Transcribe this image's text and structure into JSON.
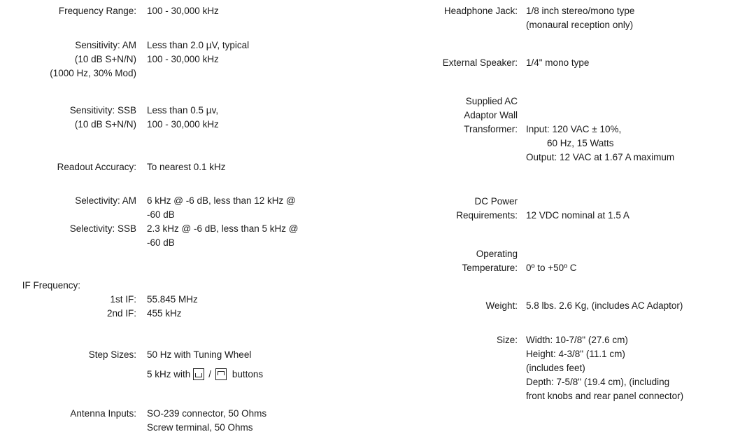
{
  "left": {
    "frequency_range": {
      "label": "Frequency Range:",
      "value": "100 - 30,000 kHz"
    },
    "sensitivity_am": {
      "label1": "Sensitivity: AM",
      "value1": "Less than 2.0 µV, typical",
      "label2": "(10 dB S+N/N)",
      "value2": "100 - 30,000 kHz",
      "label3": "(1000 Hz, 30% Mod)"
    },
    "sensitivity_ssb": {
      "label1": "Sensitivity: SSB",
      "value1": "Less than 0.5 µv,",
      "label2": "(10 dB S+N/N)",
      "value2": "100 - 30,000 kHz"
    },
    "readout_accuracy": {
      "label": "Readout Accuracy:",
      "value": "To nearest 0.1 kHz"
    },
    "selectivity": {
      "am_label": "Selectivity: AM",
      "am_value1": "6 kHz @ -6 dB, less than 12 kHz @",
      "am_value2": "-60 dB",
      "ssb_label": "Selectivity: SSB",
      "ssb_value1": "2.3 kHz @ -6 dB, less than 5 kHz @",
      "ssb_value2": "-60 dB"
    },
    "if_frequency": {
      "label": "IF Frequency:",
      "first_label": "1st IF:",
      "first_value": "55.845 MHz",
      "second_label": "2nd IF:",
      "second_value": "455 kHz"
    },
    "step_sizes": {
      "label": "Step Sizes:",
      "value1": "50 Hz with Tuning Wheel",
      "value2_prefix": "5 kHz with",
      "value2_slash": "/",
      "value2_suffix": "buttons"
    },
    "antenna_inputs": {
      "label": "Antenna Inputs:",
      "value1": "SO-239 connector, 50 Ohms",
      "value2": "Screw terminal, 50 Ohms"
    }
  },
  "right": {
    "headphone_jack": {
      "label": "Headphone Jack:",
      "value1": "1/8 inch stereo/mono type",
      "value2": "(monaural reception only)"
    },
    "external_speaker": {
      "label": "External Speaker:",
      "value": "1/4\" mono type"
    },
    "ac_adaptor": {
      "label1": "Supplied AC",
      "label2": "Adaptor Wall",
      "label3": "Transformer:",
      "input1": "Input: 120 VAC ± 10%,",
      "input2": "60 Hz, 15 Watts",
      "output": "Output: 12 VAC at 1.67 A maximum"
    },
    "dc_power": {
      "label1": "DC Power",
      "label2": "Requirements:",
      "value": "12 VDC nominal at 1.5 A"
    },
    "operating_temp": {
      "label1": "Operating",
      "label2": "Temperature:",
      "value": "0º to +50º C"
    },
    "weight": {
      "label": "Weight:",
      "value": "5.8 lbs.  2.6 Kg, (includes AC Adaptor)"
    },
    "size": {
      "label": "Size:",
      "width": "Width: 10-7/8\" (27.6 cm)",
      "height": "Height: 4-3/8\" (11.1 cm)",
      "height_note": "(includes feet)",
      "depth": "Depth: 7-5/8\" (19.4 cm), (including",
      "depth_note": "front knobs and rear panel connector)"
    }
  },
  "icons": [
    "step-down-key-icon",
    "step-up-key-icon"
  ]
}
